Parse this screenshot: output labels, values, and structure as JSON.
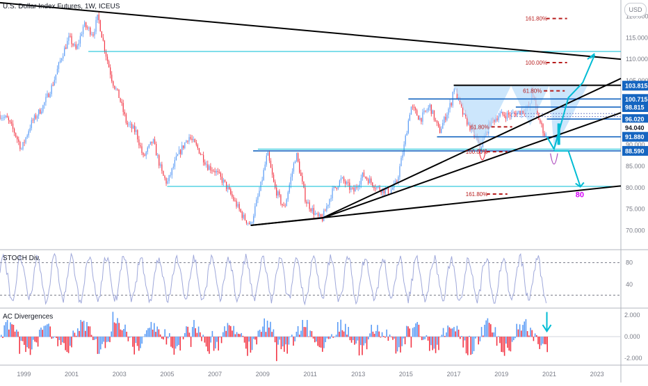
{
  "header": {
    "title": "U.S. Dollar Index Futures, 1W, ICEUS",
    "currency": "USD"
  },
  "colors": {
    "up": "#5b9cf6",
    "down": "#f23645",
    "cyan": "#00bcd4",
    "blue": "#1565c0",
    "dark": "#000000",
    "fib": "#b71c1c",
    "stoch": "#9fa8da",
    "pattern": "#bbdefb"
  },
  "chart_data": [
    {
      "type": "candlestick",
      "title": "U.S. Dollar Index Futures, 1W, ICEUS",
      "x_axis": {
        "ticks": [
          "1999",
          "2001",
          "2003",
          "2005",
          "2007",
          "2009",
          "2011",
          "2013",
          "2015",
          "2017",
          "2019",
          "2021",
          "2023"
        ],
        "range": [
          1998.0,
          2024.0
        ]
      },
      "y_axis": {
        "ticks": [
          "70.000",
          "75.000",
          "80.000",
          "85.000",
          "90.000",
          "95.000",
          "100.000",
          "105.000",
          "110.000",
          "115.000",
          "120.000"
        ],
        "range": [
          66.0,
          123.5
        ]
      },
      "price_path": [
        [
          1998.0,
          97
        ],
        [
          1998.3,
          96
        ],
        [
          1998.6,
          93
        ],
        [
          1998.9,
          89
        ],
        [
          1999.3,
          95
        ],
        [
          1999.8,
          99
        ],
        [
          2000.2,
          104
        ],
        [
          2000.6,
          111
        ],
        [
          2000.9,
          115
        ],
        [
          2001.2,
          112
        ],
        [
          2001.5,
          118
        ],
        [
          2001.9,
          116
        ],
        [
          2002.1,
          120
        ],
        [
          2002.4,
          112
        ],
        [
          2002.7,
          105
        ],
        [
          2003.0,
          101
        ],
        [
          2003.3,
          95
        ],
        [
          2003.7,
          93
        ],
        [
          2004.0,
          87
        ],
        [
          2004.4,
          91
        ],
        [
          2004.8,
          83
        ],
        [
          2005.0,
          81
        ],
        [
          2005.4,
          87
        ],
        [
          2005.9,
          92
        ],
        [
          2006.3,
          89
        ],
        [
          2006.7,
          85
        ],
        [
          2007.0,
          84
        ],
        [
          2007.4,
          81
        ],
        [
          2007.8,
          77
        ],
        [
          2008.2,
          73
        ],
        [
          2008.5,
          71.3
        ],
        [
          2008.9,
          80
        ],
        [
          2009.2,
          88
        ],
        [
          2009.5,
          80
        ],
        [
          2009.9,
          75
        ],
        [
          2010.4,
          88
        ],
        [
          2010.8,
          77
        ],
        [
          2011.3,
          73
        ],
        [
          2011.5,
          72.8
        ],
        [
          2011.9,
          79
        ],
        [
          2012.3,
          82
        ],
        [
          2012.8,
          79
        ],
        [
          2013.2,
          83
        ],
        [
          2013.8,
          80
        ],
        [
          2014.3,
          79
        ],
        [
          2014.6,
          81
        ],
        [
          2014.9,
          89
        ],
        [
          2015.2,
          99
        ],
        [
          2015.6,
          96
        ],
        [
          2016.0,
          99
        ],
        [
          2016.4,
          93
        ],
        [
          2016.9,
          100
        ],
        [
          2017.0,
          103.8
        ],
        [
          2017.4,
          97
        ],
        [
          2017.9,
          92
        ],
        [
          2018.1,
          89
        ],
        [
          2018.5,
          95
        ],
        [
          2018.9,
          97
        ],
        [
          2019.4,
          97
        ],
        [
          2019.9,
          98
        ],
        [
          2020.2,
          99
        ],
        [
          2020.25,
          103.5
        ],
        [
          2020.5,
          97
        ],
        [
          2020.8,
          92.5
        ],
        [
          2020.9,
          91.9
        ]
      ],
      "levels": {
        "right_labels": [
          {
            "text": "103.815",
            "price": 103.815
          },
          {
            "text": "100.715",
            "price": 100.715
          },
          {
            "text": "98.815",
            "price": 98.815
          },
          {
            "text": "96.020",
            "price": 96.02
          },
          {
            "text": "94.040",
            "price": 94.04
          },
          {
            "text": "91.880",
            "price": 91.88
          },
          {
            "text": "88.590",
            "price": 88.59
          }
        ]
      },
      "fib_labels": [
        {
          "text": "161.80%",
          "x": 2020.0,
          "price": 119.5
        },
        {
          "text": "100.00%",
          "x": 2020.0,
          "price": 109.2
        },
        {
          "text": "61.80%",
          "x": 2019.9,
          "price": 102.6
        },
        {
          "text": "61.80%",
          "x": 2017.7,
          "price": 94.2
        },
        {
          "text": "100.00%",
          "x": 2017.5,
          "price": 88.4
        },
        {
          "text": "161.80%",
          "x": 2017.5,
          "price": 78.5
        }
      ],
      "target_label": {
        "text": "80",
        "x": 2022.1,
        "price": 77.8
      }
    },
    {
      "type": "line",
      "title": "STOCH Div.",
      "y_axis": {
        "ticks": [
          "80",
          "40"
        ],
        "range": [
          0,
          100
        ],
        "bands": [
          80,
          20
        ]
      }
    },
    {
      "type": "bar",
      "title": "AC Divergences",
      "y_axis": {
        "ticks": [
          "2.000",
          "0.000",
          "-2.000"
        ],
        "range": [
          -2.6,
          2.6
        ]
      }
    }
  ]
}
